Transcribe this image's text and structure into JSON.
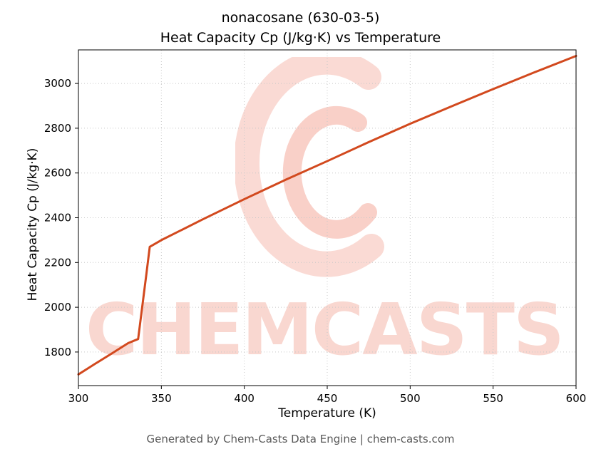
{
  "title_line1": "nonacosane (630-03-5)",
  "title_line2": "Heat Capacity Cp (J/kg·K) vs Temperature",
  "footer": "Generated by Chem-Casts Data Engine | chem-casts.com",
  "watermark": {
    "text": "CHEMCASTS",
    "color": "#e8573a"
  },
  "chart_data": {
    "type": "line",
    "title": "nonacosane (630-03-5) — Heat Capacity Cp (J/kg·K) vs Temperature",
    "xlabel": "Temperature (K)",
    "ylabel": "Heat Capacity Cp (J/kg·K)",
    "xlim": [
      300,
      600
    ],
    "ylim": [
      1650,
      3150
    ],
    "xticks": [
      300,
      350,
      400,
      450,
      500,
      550,
      600
    ],
    "yticks": [
      1800,
      2000,
      2200,
      2400,
      2600,
      2800,
      3000
    ],
    "grid": true,
    "grid_style": "dotted",
    "legend": "none",
    "line_color": "#d2491e",
    "line_width": 3,
    "series": [
      {
        "name": "Heat Capacity Cp",
        "x": [
          300,
          310,
          320,
          330,
          336,
          338,
          341,
          343,
          350,
          375,
          400,
          425,
          450,
          475,
          500,
          525,
          550,
          575,
          600
        ],
        "y": [
          1700,
          1747,
          1793,
          1840,
          1858,
          1975,
          2150,
          2270,
          2300,
          2393,
          2483,
          2570,
          2653,
          2738,
          2820,
          2898,
          2975,
          3050,
          3123
        ]
      }
    ]
  }
}
